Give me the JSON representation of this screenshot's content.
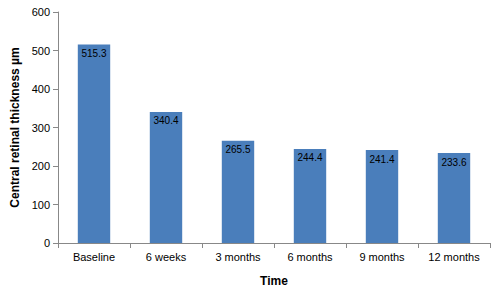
{
  "chart_data": {
    "type": "bar",
    "x_label": "Time",
    "y_label": "Central retinal thickness µm",
    "categories": [
      "Baseline",
      "6 weeks",
      "3 months",
      "6 months",
      "9 months",
      "12 months"
    ],
    "values": [
      515.3,
      340.4,
      265.5,
      244.4,
      241.4,
      233.6
    ],
    "color": "#4a7ebb",
    "ylim": [
      0,
      600
    ],
    "yticks": [
      0,
      100,
      200,
      300,
      400,
      500,
      600
    ],
    "grid": false,
    "data_labels": true
  }
}
